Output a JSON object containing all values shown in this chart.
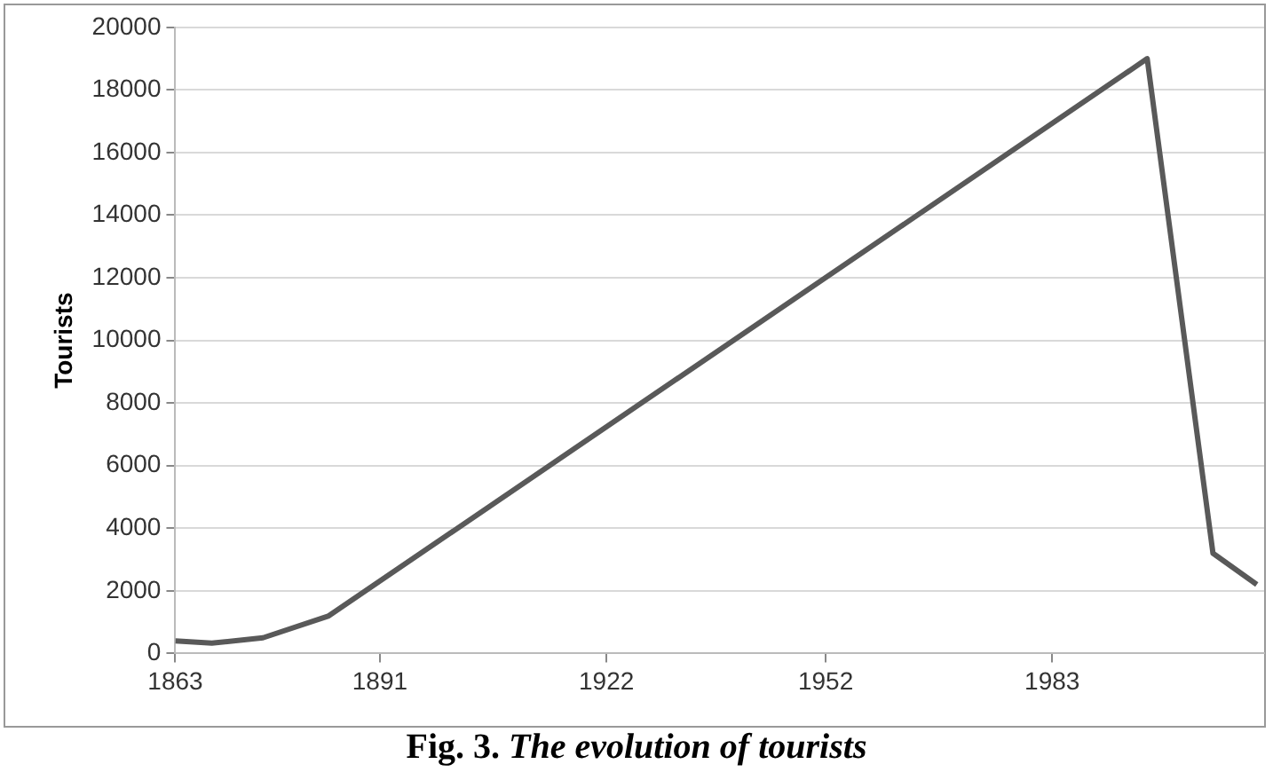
{
  "chart_data": {
    "type": "line",
    "ylabel": "Tourists",
    "annotations": [
      "Fig. 3. The evolution of tourists"
    ],
    "x": [
      1863,
      1868,
      1875,
      1884,
      1996,
      2005,
      2011
    ],
    "series": [
      {
        "color": "#595959",
        "values": [
          400,
          330,
          500,
          1200,
          19000,
          3200,
          2200
        ]
      }
    ],
    "xlim": [
      1863,
      2012
    ],
    "xticks": [
      1863,
      1891,
      1922,
      1952,
      1983
    ],
    "ylim": [
      0,
      20000
    ],
    "yticks": [
      0,
      2000,
      4000,
      6000,
      8000,
      10000,
      12000,
      14000,
      16000,
      18000,
      20000
    ],
    "grid": "y",
    "legend": false,
    "marker": "none",
    "line_style": "solid"
  }
}
